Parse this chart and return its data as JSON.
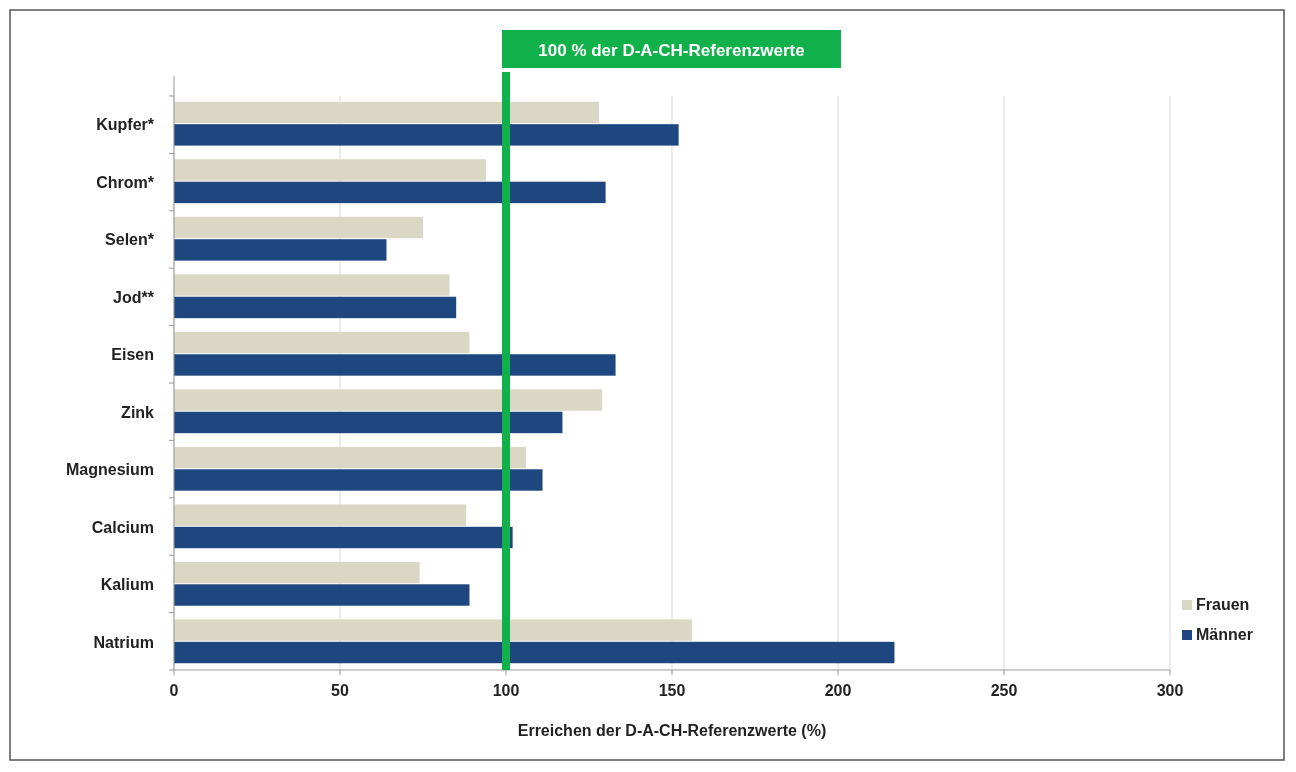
{
  "chart_data": {
    "type": "bar",
    "orientation": "horizontal",
    "xlabel": "Erreichen der D-A-CH-Referenzwerte (%)",
    "categories": [
      "Kupfer*",
      "Chrom*",
      "Selen*",
      "Jod**",
      "Eisen",
      "Zink",
      "Magnesium",
      "Calcium",
      "Kalium",
      "Natrium"
    ],
    "series": [
      {
        "name": "Frauen",
        "color": "#dbd7c5",
        "values": [
          128,
          94,
          75,
          83,
          89,
          129,
          106,
          88,
          74,
          156
        ]
      },
      {
        "name": "Männer",
        "color": "#1f477f",
        "values": [
          152,
          130,
          64,
          85,
          133,
          117,
          111,
          102,
          89,
          217
        ]
      }
    ],
    "xlim": [
      0,
      300
    ],
    "xticks": [
      0,
      50,
      100,
      150,
      200,
      250,
      300
    ],
    "grid": "x",
    "legend": "bottom right",
    "ref_lines": [
      {
        "axis": "x",
        "value": 100,
        "label": "100 % der D-A-CH-Referenzwerte",
        "color": "#10b04a"
      }
    ]
  }
}
